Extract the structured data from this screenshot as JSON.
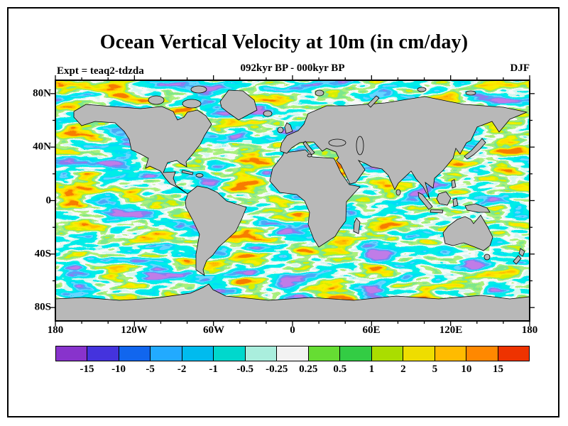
{
  "figure": {
    "title": "Ocean Vertical Velocity at 10m (in cm/day)",
    "period_label": "092kyr BP - 000kyr BP",
    "experiment_label": "Expt = teaq2-tdzda",
    "season_label": "DJF"
  },
  "axes": {
    "lat_ticks": [
      "80N",
      "40N",
      "0",
      "40S",
      "80S"
    ],
    "lon_ticks": [
      "180",
      "120W",
      "60W",
      "0",
      "60E",
      "120E",
      "180"
    ]
  },
  "colorbar": {
    "labels": [
      "-15",
      "-10",
      "-5",
      "-2",
      "-1",
      "-0.5",
      "-0.25",
      "0.25",
      "0.5",
      "1",
      "2",
      "5",
      "10",
      "15"
    ]
  },
  "map": {
    "land_color": "#b8b8b8",
    "ocean_base_color": "#2fc8b8"
  },
  "chart_data": {
    "type": "heatmap",
    "title": "Ocean Vertical Velocity at 10m (in cm/day)",
    "subtitle": "092kyr BP - 000kyr BP",
    "experiment": "teaq2-tdzda",
    "season": "DJF",
    "units": "cm/day",
    "projection": "equirectangular world map, 180W-180E, 90S-90N, centered on 0 longitude",
    "x_axis": {
      "label": "longitude",
      "tick_labels": [
        "180",
        "120W",
        "60W",
        "0",
        "60E",
        "120E",
        "180"
      ],
      "range_deg": [
        -180,
        180
      ]
    },
    "y_axis": {
      "label": "latitude",
      "tick_labels": [
        "80N",
        "40N",
        "0",
        "40S",
        "80S"
      ],
      "range_deg": [
        -90,
        90
      ]
    },
    "colorbar_levels": [
      -15,
      -10,
      -5,
      -2,
      -1,
      -0.5,
      -0.25,
      0.25,
      0.5,
      1,
      2,
      5,
      10,
      15
    ],
    "colorbar_colors": [
      "#8833cc",
      "#4433dd",
      "#1166ee",
      "#22aaff",
      "#00bbee",
      "#00d8cc",
      "#aaeedd",
      "#f2f2f2",
      "#66dd33",
      "#33cc44",
      "#aadd00",
      "#eedd00",
      "#ffbb00",
      "#ff8800",
      "#ee3300"
    ],
    "land_color": "#b8b8b8",
    "field_description": "Mottled field of upwelling (positive, green-yellow-orange-red) and downwelling (negative, cyan-blue-purple) vertical velocity over all ocean basins; near-zero values white; land masked gray"
  }
}
